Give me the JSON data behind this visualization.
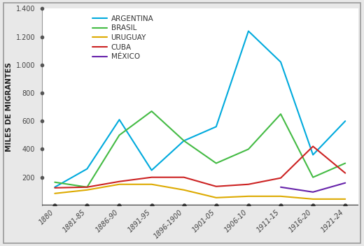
{
  "x_labels": [
    "1880",
    "1881-85",
    "1886-90",
    "1891-95",
    "1896-1900",
    "1901-05",
    "1906-10",
    "1911-15",
    "1916-20",
    "1921-24"
  ],
  "x_positions": [
    0,
    1,
    2,
    3,
    4,
    5,
    6,
    7,
    8,
    9
  ],
  "series": {
    "ARGENTINA": {
      "values": [
        130,
        260,
        610,
        250,
        460,
        560,
        1240,
        1020,
        360,
        600
      ],
      "color": "#00AADD",
      "linewidth": 1.5
    },
    "BRASIL": {
      "values": [
        165,
        130,
        500,
        670,
        460,
        300,
        400,
        650,
        200,
        300
      ],
      "color": "#44BB44",
      "linewidth": 1.5
    },
    "URUGUAY": {
      "values": [
        85,
        110,
        150,
        150,
        110,
        55,
        65,
        65,
        45,
        45
      ],
      "color": "#DDAA00",
      "linewidth": 1.5
    },
    "CUBA": {
      "values": [
        125,
        130,
        170,
        200,
        200,
        135,
        150,
        195,
        420,
        230
      ],
      "color": "#CC2222",
      "linewidth": 1.5
    },
    "MÉXICO": {
      "values": [
        null,
        null,
        null,
        null,
        null,
        null,
        null,
        130,
        95,
        160
      ],
      "color": "#6622AA",
      "linewidth": 1.5
    }
  },
  "ylabel": "MILES DE MIGRANTES",
  "ylim": [
    0,
    1400
  ],
  "yticks": [
    200,
    400,
    600,
    800,
    1000,
    1200,
    1400
  ],
  "ytick_labels": [
    "200",
    "400",
    "600",
    "800",
    "1.000",
    "1.200",
    "1.400"
  ],
  "background_color": "#ffffff",
  "outer_background": "#e8e8e8",
  "label_fontsize": 7.5,
  "legend_fontsize": 7.5,
  "tick_fontsize": 7.0
}
